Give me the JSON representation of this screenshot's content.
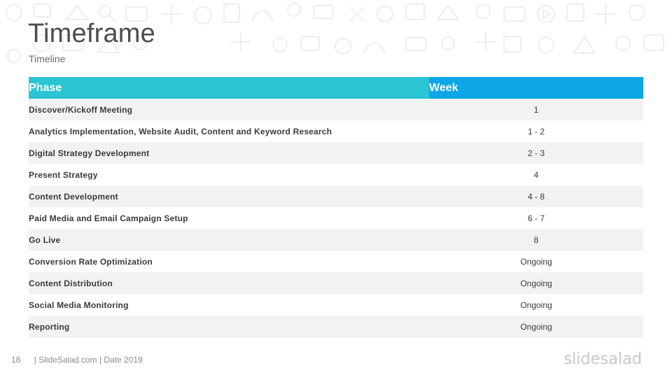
{
  "slide": {
    "title": "Timeframe",
    "subtitle": "Timeline"
  },
  "table": {
    "headers": {
      "phase": "Phase",
      "week": "Week"
    },
    "header_colors": {
      "phase": "#2ac5d4",
      "week": "#0fa6e7"
    },
    "rows": [
      {
        "phase": "Discover/Kickoff Meeting",
        "week": "1"
      },
      {
        "phase": "Analytics Implementation, Website Audit, Content and Keyword Research",
        "week": "1 - 2"
      },
      {
        "phase": "Digital Strategy Development",
        "week": "2 - 3"
      },
      {
        "phase": "Present Strategy",
        "week": "4"
      },
      {
        "phase": "Content Development",
        "week": "4 - 8"
      },
      {
        "phase": "Paid Media and Email Campaign Setup",
        "week": "6 - 7"
      },
      {
        "phase": "Go Live",
        "week": "8"
      },
      {
        "phase": "Conversion Rate Optimization",
        "week": "Ongoing"
      },
      {
        "phase": "Content Distribution",
        "week": "Ongoing"
      },
      {
        "phase": "Social Media Monitoring",
        "week": "Ongoing"
      },
      {
        "phase": "Reporting",
        "week": "Ongoing"
      }
    ]
  },
  "footer": {
    "page_number": "18",
    "text": "| SlideSalad.com | Date 2019"
  },
  "logo": {
    "text": "slidesalad"
  },
  "background": {
    "icon_pattern": "doodle-business-icons"
  }
}
